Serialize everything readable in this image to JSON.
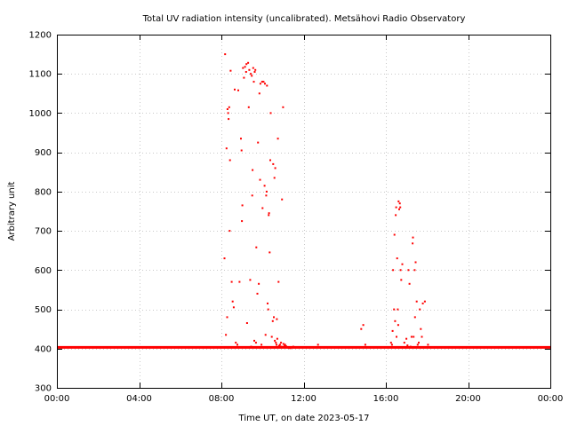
{
  "chart_data": {
    "type": "scatter",
    "title": "Total UV radiation intensity (uncalibrated). Metsähovi Radio Observatory",
    "xlabel": "Time UT, on date 2023-05-17",
    "ylabel": "Arbitrary unit",
    "xlim": [
      0,
      24
    ],
    "ylim": [
      300,
      1200
    ],
    "x_ticks": [
      0,
      4,
      8,
      12,
      16,
      20,
      24
    ],
    "x_tick_labels": [
      "00:00",
      "04:00",
      "08:00",
      "12:00",
      "16:00",
      "20:00",
      "00:00"
    ],
    "y_ticks": [
      300,
      400,
      500,
      600,
      700,
      800,
      900,
      1000,
      1100,
      1200
    ],
    "y_tick_labels": [
      "300",
      "400",
      "500",
      "600",
      "700",
      "800",
      "900",
      "1000",
      "1100",
      "1200"
    ],
    "grid": true,
    "color": "#ff0000",
    "baseline": {
      "value": 402,
      "x_range": [
        0,
        24
      ]
    },
    "series": [
      {
        "x": [
          8.15,
          8.18,
          8.22,
          8.25,
          8.28,
          8.3,
          8.33,
          8.35,
          8.38,
          8.4,
          8.42,
          8.45,
          8.5,
          8.55,
          8.6,
          8.65,
          8.7,
          8.78,
          8.82,
          8.88,
          8.95,
          8.98,
          9.0,
          9.02,
          9.05,
          9.1,
          9.15,
          9.2,
          9.22,
          9.25,
          9.3,
          9.33,
          9.36,
          9.4,
          9.43,
          9.45,
          9.48,
          9.5,
          9.52,
          9.55,
          9.58,
          9.6,
          9.62,
          9.65,
          9.68,
          9.7,
          9.75,
          9.78,
          9.82,
          9.85,
          9.88,
          9.9,
          9.95,
          9.98,
          10.0,
          10.05,
          10.1,
          10.12,
          10.15,
          10.18,
          10.2,
          10.22,
          10.25,
          10.28,
          10.3,
          10.32,
          10.35,
          10.38,
          10.4,
          10.45,
          10.5,
          10.52,
          10.55,
          10.58,
          10.6,
          10.62,
          10.65,
          10.68,
          10.7,
          10.72,
          10.75,
          10.78,
          10.8,
          10.82,
          10.85,
          10.88,
          10.9,
          10.92,
          10.95,
          11.0,
          11.02,
          11.05,
          11.08,
          11.1,
          11.15,
          11.2,
          11.28,
          11.35,
          11.4,
          11.5,
          12.7,
          14.8,
          14.9,
          15.0,
          16.25,
          16.3,
          16.33,
          16.35,
          16.4,
          16.42,
          16.45,
          16.48,
          16.5,
          16.52,
          16.55,
          16.58,
          16.6,
          16.62,
          16.65,
          16.68,
          16.7,
          16.72,
          16.75,
          16.8,
          16.9,
          17.0,
          17.05,
          17.1,
          17.15,
          17.2,
          17.25,
          17.3,
          17.32,
          17.35,
          17.4,
          17.42,
          17.45,
          17.5,
          17.55,
          17.6,
          17.65,
          17.7,
          17.75,
          17.8,
          17.9,
          18.05
        ],
        "y": [
          630,
          1150,
          435,
          910,
          480,
          1010,
          1000,
          985,
          1015,
          700,
          880,
          1108,
          570,
          520,
          505,
          1060,
          415,
          410,
          1058,
          570,
          935,
          905,
          725,
          765,
          1115,
          1090,
          1118,
          1105,
          1125,
          465,
          1128,
          1015,
          1110,
          575,
          1100,
          405,
          1095,
          790,
          855,
          1115,
          1080,
          420,
          1105,
          1110,
          415,
          658,
          540,
          925,
          565,
          1050,
          830,
          1075,
          410,
          1080,
          758,
          1080,
          815,
          1075,
          435,
          790,
          800,
          1070,
          515,
          500,
          740,
          745,
          645,
          880,
          1000,
          430,
          470,
          870,
          480,
          835,
          420,
          860,
          415,
          410,
          475,
          425,
          935,
          570,
          407,
          405,
          410,
          403,
          415,
          405,
          780,
          1015,
          412,
          405,
          408,
          410,
          406,
          404,
          402,
          401,
          403,
          405,
          410,
          450,
          460,
          410,
          415,
          410,
          445,
          600,
          500,
          690,
          470,
          740,
          760,
          430,
          630,
          500,
          460,
          775,
          755,
          770,
          760,
          600,
          575,
          615,
          415,
          425,
          408,
          600,
          565,
          405,
          430,
          668,
          683,
          430,
          600,
          480,
          620,
          520,
          410,
          415,
          500,
          450,
          430,
          515,
          520,
          410
        ]
      }
    ]
  }
}
